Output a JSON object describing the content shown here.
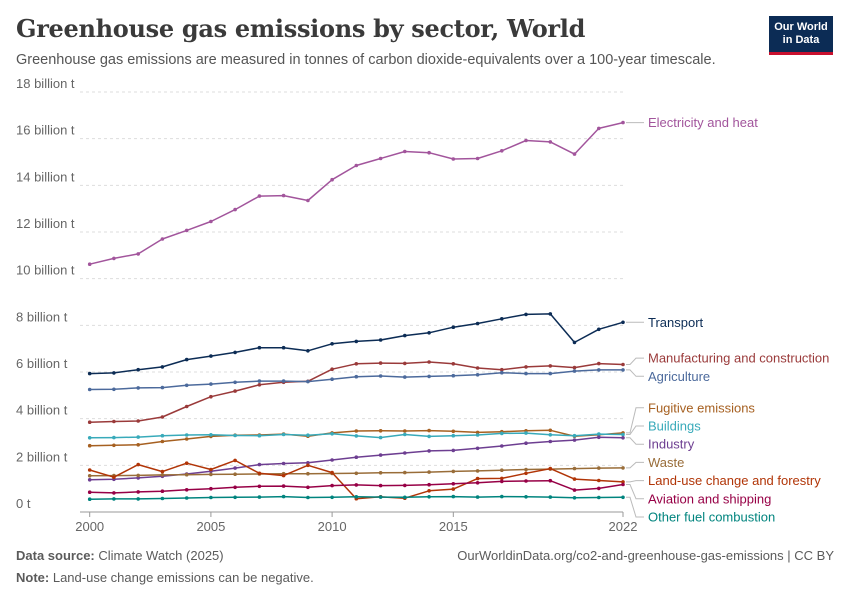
{
  "header": {
    "title": "Greenhouse gas emissions by sector, World",
    "subtitle": "Greenhouse gas emissions are measured in tonnes of carbon dioxide-equivalents over a 100-year timescale.",
    "logo_line1": "Our World",
    "logo_line2": "in Data"
  },
  "footer": {
    "source_label": "Data source:",
    "source_text": "Climate Watch (2025)",
    "url_text": "OurWorldinData.org/co2-and-greenhouse-gas-emissions | CC BY",
    "note_label": "Note:",
    "note_text": "Land-use change emissions can be negative."
  },
  "chart_data": {
    "type": "line",
    "title": "Greenhouse gas emissions by sector, World",
    "ylabel": "",
    "xlabel": "",
    "xlim": [
      1999.6,
      2022
    ],
    "ylim": [
      0,
      18000000000
    ],
    "grid": true,
    "legend": "right, labels at line ends",
    "x_ticks": [
      2000,
      2005,
      2010,
      2015,
      2022
    ],
    "y_ticks": [
      {
        "value": 0,
        "label": "0 t"
      },
      {
        "value": 2000000000,
        "label": "2 billion t"
      },
      {
        "value": 4000000000,
        "label": "4 billion t"
      },
      {
        "value": 6000000000,
        "label": "6 billion t"
      },
      {
        "value": 8000000000,
        "label": "8 billion t"
      },
      {
        "value": 10000000000,
        "label": "10 billion t"
      },
      {
        "value": 12000000000,
        "label": "12 billion t"
      },
      {
        "value": 14000000000,
        "label": "14 billion t"
      },
      {
        "value": 16000000000,
        "label": "16 billion t"
      },
      {
        "value": 18000000000,
        "label": "18 billion t"
      }
    ],
    "x": [
      2000,
      2001,
      2002,
      2003,
      2004,
      2005,
      2006,
      2007,
      2008,
      2009,
      2010,
      2011,
      2012,
      2013,
      2014,
      2015,
      2016,
      2017,
      2018,
      2019,
      2020,
      2021,
      2022
    ],
    "series": [
      {
        "name": "Electricity and heat",
        "color": "#a2559c",
        "values": [
          10.62,
          10.87,
          11.06,
          11.7,
          12.07,
          12.45,
          12.96,
          13.54,
          13.56,
          13.35,
          14.24,
          14.85,
          15.15,
          15.45,
          15.4,
          15.13,
          15.15,
          15.48,
          15.92,
          15.86,
          15.34,
          16.44,
          16.69
        ]
      },
      {
        "name": "Transport",
        "color": "#0c2c55",
        "values": [
          5.93,
          5.96,
          6.1,
          6.22,
          6.53,
          6.68,
          6.84,
          7.04,
          7.04,
          6.91,
          7.21,
          7.31,
          7.37,
          7.56,
          7.68,
          7.92,
          8.08,
          8.28,
          8.47,
          8.49,
          7.27,
          7.83,
          8.13
        ]
      },
      {
        "name": "Manufacturing and construction",
        "color": "#9a3a3a",
        "values": [
          3.85,
          3.88,
          3.9,
          4.07,
          4.52,
          4.94,
          5.18,
          5.45,
          5.56,
          5.6,
          6.12,
          6.35,
          6.38,
          6.37,
          6.43,
          6.35,
          6.17,
          6.1,
          6.22,
          6.26,
          6.19,
          6.36,
          6.32
        ]
      },
      {
        "name": "Agriculture",
        "color": "#4c6a9c",
        "values": [
          5.25,
          5.26,
          5.32,
          5.33,
          5.43,
          5.48,
          5.56,
          5.61,
          5.61,
          5.59,
          5.69,
          5.8,
          5.83,
          5.78,
          5.81,
          5.84,
          5.88,
          5.97,
          5.93,
          5.93,
          6.04,
          6.09,
          6.09
        ]
      },
      {
        "name": "Fugitive emissions",
        "color": "#a66021",
        "values": [
          2.84,
          2.86,
          2.88,
          3.02,
          3.13,
          3.24,
          3.29,
          3.3,
          3.34,
          3.25,
          3.39,
          3.47,
          3.48,
          3.47,
          3.49,
          3.46,
          3.41,
          3.44,
          3.48,
          3.5,
          3.25,
          3.31,
          3.39
        ]
      },
      {
        "name": "Buildings",
        "color": "#38aaba",
        "values": [
          3.18,
          3.19,
          3.21,
          3.27,
          3.3,
          3.31,
          3.28,
          3.27,
          3.32,
          3.29,
          3.35,
          3.26,
          3.19,
          3.32,
          3.24,
          3.27,
          3.3,
          3.37,
          3.38,
          3.31,
          3.27,
          3.34,
          3.32
        ]
      },
      {
        "name": "Industry",
        "color": "#6d3e91",
        "values": [
          1.38,
          1.4,
          1.46,
          1.53,
          1.63,
          1.75,
          1.88,
          2.03,
          2.08,
          2.11,
          2.23,
          2.35,
          2.44,
          2.53,
          2.62,
          2.64,
          2.73,
          2.83,
          2.95,
          3.02,
          3.08,
          3.2,
          3.18
        ]
      },
      {
        "name": "Waste",
        "color": "#996d39",
        "values": [
          1.55,
          1.56,
          1.57,
          1.59,
          1.6,
          1.61,
          1.62,
          1.63,
          1.64,
          1.64,
          1.65,
          1.66,
          1.68,
          1.69,
          1.71,
          1.74,
          1.76,
          1.79,
          1.82,
          1.84,
          1.86,
          1.88,
          1.89
        ]
      },
      {
        "name": "Land-use change and forestry",
        "color": "#b13507",
        "values": [
          1.8,
          1.49,
          2.03,
          1.73,
          2.09,
          1.82,
          2.21,
          1.66,
          1.56,
          2.0,
          1.69,
          0.57,
          0.65,
          0.59,
          0.91,
          0.98,
          1.43,
          1.44,
          1.66,
          1.86,
          1.41,
          1.35,
          1.29
        ]
      },
      {
        "name": "Aviation and shipping",
        "color": "#970046",
        "values": [
          0.85,
          0.82,
          0.86,
          0.89,
          0.95,
          1.0,
          1.06,
          1.1,
          1.11,
          1.06,
          1.13,
          1.16,
          1.13,
          1.14,
          1.17,
          1.21,
          1.25,
          1.31,
          1.33,
          1.34,
          0.94,
          1.01,
          1.18
        ]
      },
      {
        "name": "Other fuel combustion",
        "color": "#00847e",
        "values": [
          0.55,
          0.56,
          0.56,
          0.58,
          0.6,
          0.62,
          0.63,
          0.64,
          0.66,
          0.62,
          0.63,
          0.65,
          0.64,
          0.63,
          0.65,
          0.66,
          0.64,
          0.66,
          0.65,
          0.64,
          0.61,
          0.62,
          0.63
        ]
      }
    ],
    "values_unit_note": "series values in billion t"
  }
}
